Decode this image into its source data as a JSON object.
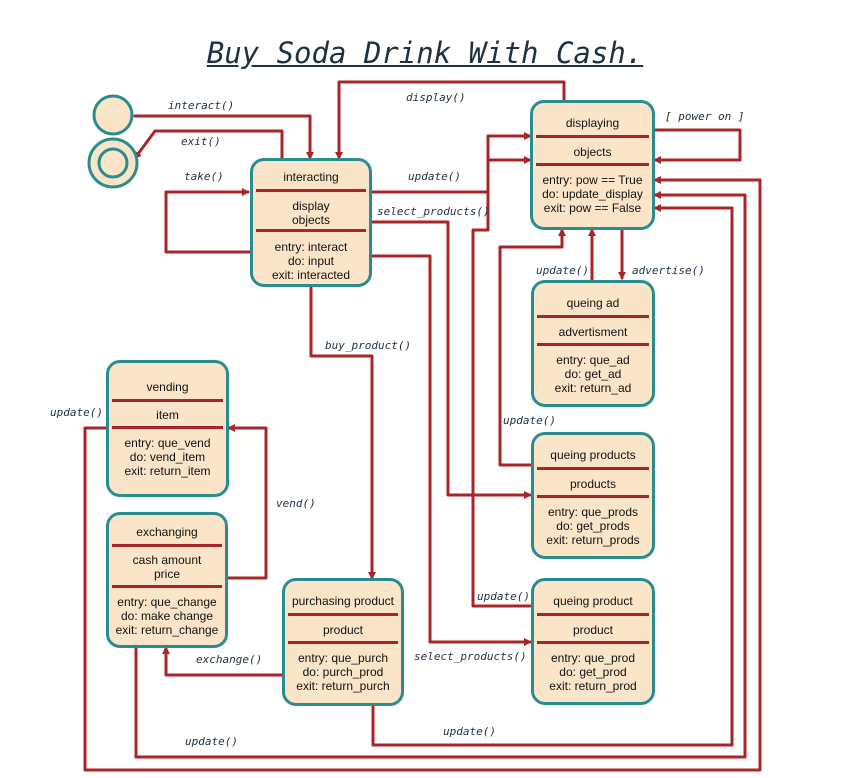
{
  "title": "Buy Soda Drink With Cash.",
  "states": {
    "interacting": {
      "name": "interacting",
      "attributes": [
        "display",
        "objects"
      ],
      "actions": [
        "entry: interact",
        "do: input",
        "exit: interacted"
      ]
    },
    "displaying": {
      "name": "displaying",
      "attributes": [
        "objects"
      ],
      "actions": [
        "entry: pow == True",
        "do: update_display",
        "exit: pow == False"
      ]
    },
    "queing_ad": {
      "name": "queing ad",
      "attributes": [
        "advertisment"
      ],
      "actions": [
        "entry: que_ad",
        "do: get_ad",
        "exit: return_ad"
      ]
    },
    "queing_products": {
      "name": "queing products",
      "attributes": [
        "products"
      ],
      "actions": [
        "entry: que_prods",
        "do: get_prods",
        "exit: return_prods"
      ]
    },
    "queing_product": {
      "name": "queing product",
      "attributes": [
        "product"
      ],
      "actions": [
        "entry: que_prod",
        "do: get_prod",
        "exit: return_prod"
      ]
    },
    "vending": {
      "name": "vending",
      "attributes": [
        "item"
      ],
      "actions": [
        "entry: que_vend",
        "do: vend_item",
        "exit: return_item"
      ]
    },
    "exchanging": {
      "name": "exchanging",
      "attributes": [
        "cash amount",
        "price"
      ],
      "actions": [
        "entry: que_change",
        "do: make change",
        "exit: return_change"
      ]
    },
    "purchasing_product": {
      "name": "purchasing product",
      "attributes": [
        "product"
      ],
      "actions": [
        "entry: que_purch",
        "do: purch_prod",
        "exit: return_purch"
      ]
    }
  },
  "transitions": {
    "interact": "interact()",
    "exit": "exit()",
    "take": "take()",
    "display": "display()",
    "power_on": "[ power on ]",
    "update_top": "update()",
    "select_products": "select_products()",
    "buy_product": "buy_product()",
    "update_ad": "update()",
    "advertise": "advertise()",
    "update_prods": "update()",
    "update_prod": "update()",
    "update_vend": "update()",
    "vend": "vend()",
    "exchange": "exchange()",
    "select_products_2": "select_products()",
    "update_bottom_purch": "update()",
    "update_bottom_ex": "update()"
  },
  "colors": {
    "state_fill": "#fbe5c8",
    "state_border": "#2a8c8e",
    "arrow": "#a8262a",
    "label": "#1f3140"
  }
}
